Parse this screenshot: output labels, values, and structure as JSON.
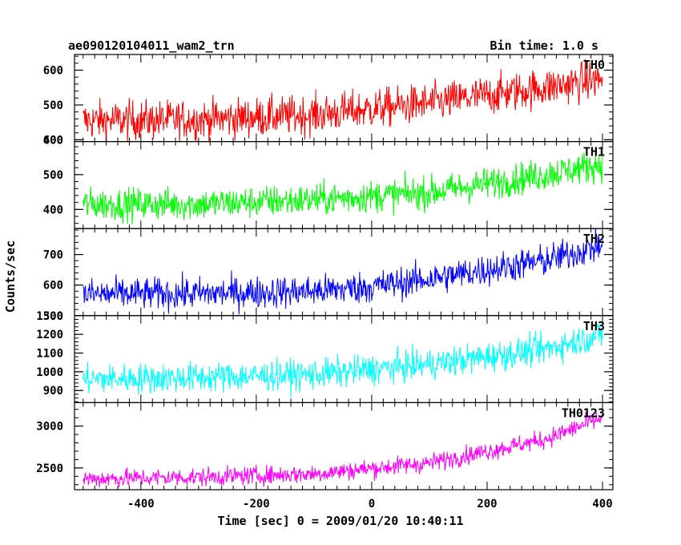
{
  "header": {
    "title": "ae090120104011_wam2_trn",
    "bin_time": "Bin time: 1.0 s"
  },
  "chart_data": {
    "type": "line",
    "xlabel": "Time [sec] 0 = 2009/01/20 10:40:11",
    "ylabel": "Counts/sec",
    "xlim": [
      -515,
      418
    ],
    "xticks": [
      -400,
      -200,
      0,
      200,
      400
    ],
    "x_start": -500,
    "x_end": 400,
    "x_step": 1,
    "panels": [
      {
        "name": "TH0",
        "color": "#ff0000",
        "ylim": [
          395,
          645
        ],
        "yticks": [
          400,
          500,
          600
        ],
        "trend": [
          [
            -500,
            455
          ],
          [
            -300,
            458
          ],
          [
            -100,
            472
          ],
          [
            100,
            505
          ],
          [
            300,
            550
          ],
          [
            400,
            575
          ]
        ],
        "noise_sd": 28
      },
      {
        "name": "TH1",
        "color": "#00ff00",
        "ylim": [
          345,
          595
        ],
        "yticks": [
          400,
          500,
          600
        ],
        "trend": [
          [
            -500,
            415
          ],
          [
            -300,
            415
          ],
          [
            -100,
            428
          ],
          [
            100,
            448
          ],
          [
            300,
            500
          ],
          [
            400,
            530
          ]
        ],
        "noise_sd": 23
      },
      {
        "name": "TH2",
        "color": "#0000ff",
        "ylim": [
          500,
          785
        ],
        "yticks": [
          500,
          600,
          700
        ],
        "trend": [
          [
            -500,
            570
          ],
          [
            -300,
            572
          ],
          [
            -100,
            580
          ],
          [
            0,
            595
          ],
          [
            100,
            620
          ],
          [
            300,
            680
          ],
          [
            400,
            730
          ]
        ],
        "noise_sd": 26
      },
      {
        "name": "TH3",
        "color": "#00ffff",
        "ylim": [
          835,
          1300
        ],
        "yticks": [
          900,
          1000,
          1100,
          1200,
          1300
        ],
        "trend": [
          [
            -500,
            960
          ],
          [
            -300,
            970
          ],
          [
            -100,
            985
          ],
          [
            100,
            1040
          ],
          [
            300,
            1120
          ],
          [
            400,
            1200
          ]
        ],
        "noise_sd": 40
      },
      {
        "name": "TH0123",
        "color": "#ff00ff",
        "ylim": [
          2240,
          3280
        ],
        "yticks": [
          2500,
          3000
        ],
        "trend": [
          [
            -500,
            2370
          ],
          [
            -300,
            2390
          ],
          [
            -100,
            2430
          ],
          [
            100,
            2560
          ],
          [
            300,
            2840
          ],
          [
            400,
            3100
          ]
        ],
        "noise_sd": 55
      }
    ]
  }
}
